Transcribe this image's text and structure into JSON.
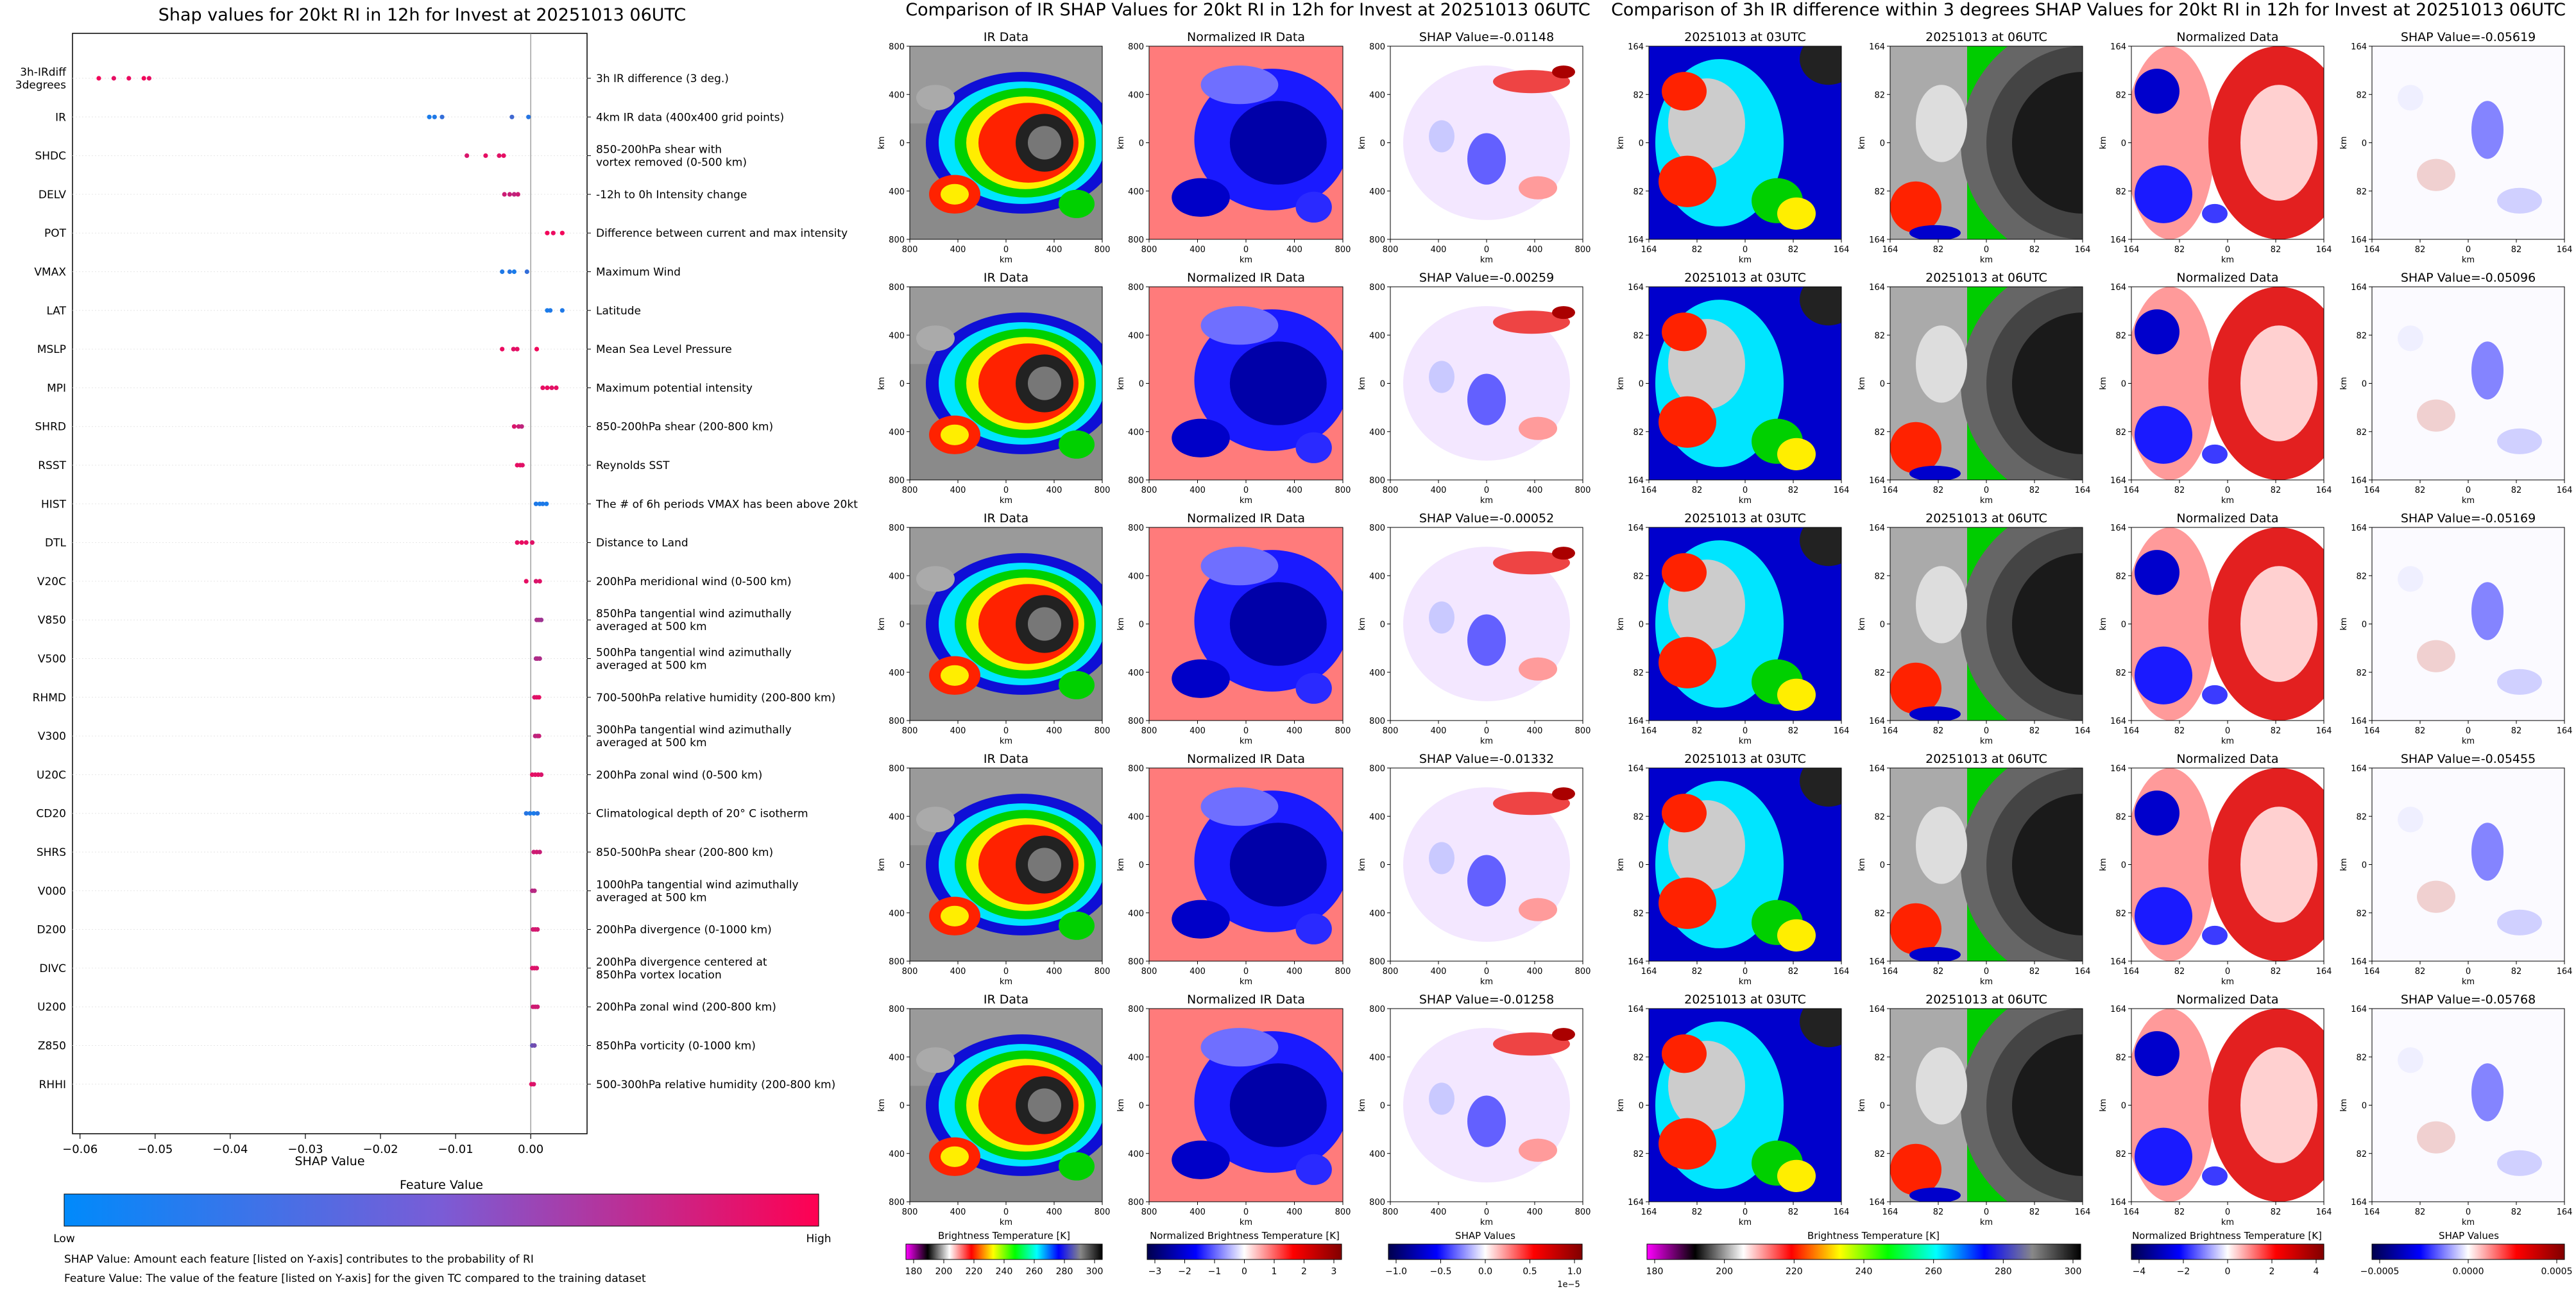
{
  "colors": {
    "feature_low": "#008afb",
    "feature_high": "#ff0052",
    "ir_stops": [
      "#ff00ff",
      "#000000",
      "#ffffff",
      "#ff0000",
      "#ffff00",
      "#00ff00",
      "#00ffff",
      "#0000ff",
      "#888888",
      "#000000"
    ],
    "norm_stops": [
      "#00004c",
      "#0000ff",
      "#ffffff",
      "#ff0000",
      "#800000"
    ],
    "shap_stops": [
      "#00004c",
      "#0000ff",
      "#ffffff",
      "#ff0000",
      "#800000"
    ]
  },
  "left_panel": {
    "title": "Shap values for 20kt RI in 12h for Invest at 20251013 06UTC",
    "xlabel": "SHAP Value",
    "colorbar_title": "Feature Value",
    "colorbar_low": "Low",
    "colorbar_high": "High",
    "note1": "SHAP Value: Amount each feature [listed on Y-axis] contributes to the probability of RI",
    "note2": "Feature Value: The value of the feature [listed on Y-axis] for the given TC compared to the training dataset"
  },
  "mid_panel": {
    "title": "Comparison of IR SHAP Values for 20kt RI in 12h for Invest at 20251013 06UTC",
    "col_titles": [
      "IR Data",
      "Normalized IR Data"
    ],
    "shap_titles": [
      "SHAP Value=-0.01148",
      "SHAP Value=-0.00259",
      "SHAP Value=-0.00052",
      "SHAP Value=-0.01332",
      "SHAP Value=-0.01258"
    ],
    "ticks": [
      "800",
      "400",
      "0",
      "400",
      "800"
    ],
    "axis_label": "km",
    "cbar1_label": "Brightness Temperature [K]",
    "cbar1_ticks": [
      "180",
      "200",
      "220",
      "240",
      "260",
      "280",
      "300"
    ],
    "cbar2_label": "Normalized Brightness Temperature [K]",
    "cbar2_ticks": [
      "−3",
      "−2",
      "−1",
      "0",
      "1",
      "2",
      "3"
    ],
    "cbar3_label": "SHAP Values",
    "cbar3_ticks": [
      "−1.0",
      "−0.5",
      "0.0",
      "0.5",
      "1.0"
    ],
    "cbar3_exp": "1e−5"
  },
  "right_panel": {
    "title": "Comparison of 3h IR difference within 3 degrees SHAP Values for 20kt RI in 12h for Invest at 20251013 06UTC",
    "col_titles": [
      "20251013 at 03UTC",
      "20251013 at 06UTC",
      "Normalized Data"
    ],
    "shap_titles": [
      "SHAP Value=-0.05619",
      "SHAP Value=-0.05096",
      "SHAP Value=-0.05169",
      "SHAP Value=-0.05455",
      "SHAP Value=-0.05768"
    ],
    "ticks": [
      "164",
      "82",
      "0",
      "82",
      "164"
    ],
    "axis_label": "km",
    "cbar1_label": "Brightness Temperature [K]",
    "cbar1_ticks": [
      "180",
      "200",
      "220",
      "240",
      "260",
      "280",
      "300"
    ],
    "cbar2_label": "Normalized Brightness Temperature [K]",
    "cbar2_ticks": [
      "−4",
      "−2",
      "0",
      "2",
      "4"
    ],
    "cbar3_label": "SHAP Values",
    "cbar3_ticks": [
      "−0.0005",
      "0.0000",
      "0.0005"
    ]
  },
  "chart_data": {
    "type": "scatter",
    "title": "Shap values for 20kt RI in 12h for Invest at 20251013 06UTC",
    "xlabel": "SHAP Value",
    "xlim": [
      -0.061,
      0.0075
    ],
    "xticks": [
      -0.06,
      -0.05,
      -0.04,
      -0.03,
      -0.02,
      -0.01,
      0.0
    ],
    "xtick_labels": [
      "−0.06",
      "−0.05",
      "−0.04",
      "−0.03",
      "−0.02",
      "−0.01",
      "0.00"
    ],
    "features": [
      {
        "name": "3h-IRdiff\n3degrees",
        "desc": "3h IR difference (3 deg.)",
        "points": [
          [
            -0.0575,
            0.95
          ],
          [
            -0.0555,
            0.9
          ],
          [
            -0.0535,
            0.92
          ],
          [
            -0.0515,
            0.95
          ],
          [
            -0.0508,
            0.9
          ]
        ]
      },
      {
        "name": "IR",
        "desc": "4km IR data (400x400 grid points)",
        "points": [
          [
            -0.0135,
            0.1
          ],
          [
            -0.0128,
            0.12
          ],
          [
            -0.0118,
            0.2
          ],
          [
            -0.0025,
            0.25
          ],
          [
            -0.0003,
            0.15
          ]
        ]
      },
      {
        "name": "SHDC",
        "desc": "850-200hPa shear with\nvortex removed (0-500 km)",
        "points": [
          [
            -0.0085,
            0.85
          ],
          [
            -0.006,
            0.9
          ],
          [
            -0.0042,
            0.88
          ],
          [
            -0.0036,
            0.9
          ]
        ]
      },
      {
        "name": "DELV",
        "desc": "-12h to 0h Intensity change",
        "points": [
          [
            -0.0035,
            0.8
          ],
          [
            -0.0028,
            0.78
          ],
          [
            -0.0022,
            0.75
          ],
          [
            -0.0017,
            0.8
          ]
        ]
      },
      {
        "name": "POT",
        "desc": "Difference between current and max intensity",
        "points": [
          [
            0.0022,
            0.95
          ],
          [
            0.003,
            0.92
          ],
          [
            0.0042,
            0.95
          ]
        ]
      },
      {
        "name": "VMAX",
        "desc": "Maximum Wind",
        "points": [
          [
            -0.0038,
            0.12
          ],
          [
            -0.0028,
            0.15
          ],
          [
            -0.0022,
            0.1
          ],
          [
            -0.0005,
            0.2
          ]
        ]
      },
      {
        "name": "LAT",
        "desc": "Latitude",
        "points": [
          [
            0.0022,
            0.1
          ],
          [
            0.0026,
            0.12
          ],
          [
            0.0042,
            0.12
          ]
        ]
      },
      {
        "name": "MSLP",
        "desc": "Mean Sea Level Pressure",
        "points": [
          [
            -0.0038,
            0.92
          ],
          [
            -0.0023,
            0.88
          ],
          [
            -0.0018,
            0.9
          ],
          [
            0.0008,
            0.95
          ]
        ]
      },
      {
        "name": "MPI",
        "desc": "Maximum potential intensity",
        "points": [
          [
            0.0016,
            0.9
          ],
          [
            0.0022,
            0.92
          ],
          [
            0.0028,
            0.88
          ],
          [
            0.0034,
            0.9
          ]
        ]
      },
      {
        "name": "SHRD",
        "desc": "850-200hPa shear (200-800 km)",
        "points": [
          [
            -0.0022,
            0.85
          ],
          [
            -0.0016,
            0.8
          ],
          [
            -0.0012,
            0.75
          ]
        ]
      },
      {
        "name": "RSST",
        "desc": "Reynolds SST",
        "points": [
          [
            -0.0018,
            0.9
          ],
          [
            -0.0014,
            0.9
          ],
          [
            -0.0011,
            0.88
          ]
        ]
      },
      {
        "name": "HIST",
        "desc": "The # of 6h periods VMAX has been above 20kt",
        "points": [
          [
            0.0007,
            0.12
          ],
          [
            0.0012,
            0.1
          ],
          [
            0.0016,
            0.12
          ],
          [
            0.0021,
            0.1
          ]
        ]
      },
      {
        "name": "DTL",
        "desc": "Distance to Land",
        "points": [
          [
            -0.0018,
            0.9
          ],
          [
            -0.0012,
            0.92
          ],
          [
            -0.0006,
            0.9
          ],
          [
            0.0002,
            0.88
          ]
        ]
      },
      {
        "name": "V20C",
        "desc": "200hPa meridional wind (0-500 km)",
        "points": [
          [
            -0.0006,
            0.9
          ],
          [
            0.0007,
            0.85
          ],
          [
            0.0012,
            0.88
          ]
        ]
      },
      {
        "name": "V850",
        "desc": "850hPa tangential wind azimuthally\naveraged at 500 km",
        "points": [
          [
            0.0008,
            0.65
          ],
          [
            0.0011,
            0.68
          ],
          [
            0.0014,
            0.62
          ]
        ]
      },
      {
        "name": "V500",
        "desc": "500hPa tangential wind azimuthally\naveraged at 500 km",
        "points": [
          [
            0.0007,
            0.65
          ],
          [
            0.0009,
            0.7
          ],
          [
            0.0012,
            0.68
          ]
        ]
      },
      {
        "name": "RHMD",
        "desc": "700-500hPa relative humidity (200-800 km)",
        "points": [
          [
            0.0005,
            0.85
          ],
          [
            0.0008,
            0.88
          ],
          [
            0.0011,
            0.9
          ]
        ]
      },
      {
        "name": "V300",
        "desc": "300hPa tangential wind azimuthally\naveraged at 500 km",
        "points": [
          [
            0.0006,
            0.75
          ],
          [
            0.0009,
            0.72
          ],
          [
            0.0011,
            0.78
          ]
        ]
      },
      {
        "name": "U20C",
        "desc": "200hPa zonal wind (0-500 km)",
        "points": [
          [
            0.0002,
            0.9
          ],
          [
            0.0006,
            0.88
          ],
          [
            0.001,
            0.9
          ],
          [
            0.0014,
            0.85
          ]
        ]
      },
      {
        "name": "CD20",
        "desc": "Climatological depth of 20° C isotherm",
        "points": [
          [
            -0.0006,
            0.15
          ],
          [
            -0.0001,
            0.12
          ],
          [
            0.0004,
            0.1
          ],
          [
            0.0009,
            0.15
          ]
        ]
      },
      {
        "name": "SHRS",
        "desc": "850-500hPa shear (200-800 km)",
        "points": [
          [
            0.0004,
            0.8
          ],
          [
            0.0008,
            0.82
          ],
          [
            0.0012,
            0.78
          ]
        ]
      },
      {
        "name": "V000",
        "desc": "1000hPa tangential wind azimuthally\naveraged at 500 km",
        "points": [
          [
            0.0002,
            0.7
          ],
          [
            0.0005,
            0.72
          ]
        ]
      },
      {
        "name": "D200",
        "desc": "200hPa divergence (0-1000 km)",
        "points": [
          [
            0.0003,
            0.8
          ],
          [
            0.0006,
            0.85
          ],
          [
            0.0009,
            0.82
          ]
        ]
      },
      {
        "name": "DIVC",
        "desc": "200hPa divergence centered at\n850hPa vortex location",
        "points": [
          [
            0.0002,
            0.85
          ],
          [
            0.0005,
            0.88
          ],
          [
            0.0008,
            0.85
          ]
        ]
      },
      {
        "name": "U200",
        "desc": "200hPa zonal wind (200-800 km)",
        "points": [
          [
            0.0003,
            0.8
          ],
          [
            0.0006,
            0.82
          ],
          [
            0.0009,
            0.8
          ]
        ]
      },
      {
        "name": "Z850",
        "desc": "850hPa vorticity (0-1000 km)",
        "points": [
          [
            0.0002,
            0.4
          ],
          [
            0.0005,
            0.45
          ]
        ]
      },
      {
        "name": "RHHI",
        "desc": "500-300hPa relative humidity (200-800 km)",
        "points": [
          [
            0.0001,
            0.9
          ],
          [
            0.0004,
            0.85
          ]
        ]
      }
    ]
  }
}
